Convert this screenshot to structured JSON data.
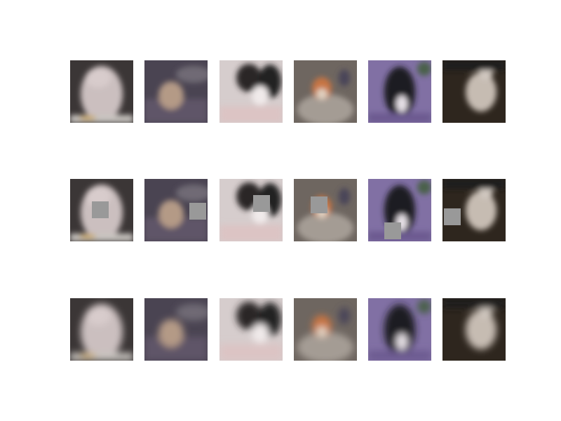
{
  "grid": {
    "rows": 3,
    "columns": 6
  }
}
